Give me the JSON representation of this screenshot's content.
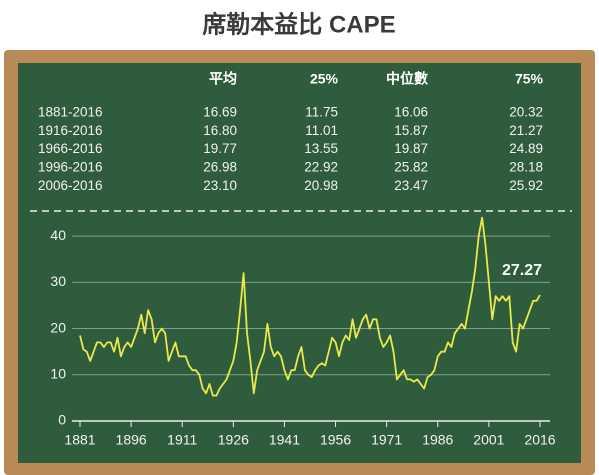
{
  "title": "席勒本益比 CAPE",
  "table": {
    "columns": [
      "平均",
      "25%",
      "中位數",
      "75%"
    ],
    "rows": [
      [
        "1881-2016",
        "16.69",
        "11.75",
        "16.06",
        "20.32"
      ],
      [
        "1916-2016",
        "16.80",
        "11.01",
        "15.87",
        "21.27"
      ],
      [
        "1966-2016",
        "19.77",
        "13.55",
        "19.87",
        "24.89"
      ],
      [
        "1996-2016",
        "26.98",
        "22.92",
        "25.82",
        "28.18"
      ],
      [
        "2006-2016",
        "23.10",
        "20.98",
        "23.47",
        "25.92"
      ]
    ]
  },
  "chart_data": {
    "type": "line",
    "color": "#e8ea4c",
    "grid": true,
    "x": [
      1881,
      1882,
      1883,
      1884,
      1885,
      1886,
      1887,
      1888,
      1889,
      1890,
      1891,
      1892,
      1893,
      1894,
      1895,
      1896,
      1897,
      1898,
      1899,
      1900,
      1901,
      1902,
      1903,
      1904,
      1905,
      1906,
      1907,
      1908,
      1909,
      1910,
      1911,
      1912,
      1913,
      1914,
      1915,
      1916,
      1917,
      1918,
      1919,
      1920,
      1921,
      1922,
      1923,
      1924,
      1925,
      1926,
      1927,
      1928,
      1929,
      1930,
      1931,
      1932,
      1933,
      1934,
      1935,
      1936,
      1937,
      1938,
      1939,
      1940,
      1941,
      1942,
      1943,
      1944,
      1945,
      1946,
      1947,
      1948,
      1949,
      1950,
      1951,
      1952,
      1953,
      1954,
      1955,
      1956,
      1957,
      1958,
      1959,
      1960,
      1961,
      1962,
      1963,
      1964,
      1965,
      1966,
      1967,
      1968,
      1969,
      1970,
      1971,
      1972,
      1973,
      1974,
      1975,
      1976,
      1977,
      1978,
      1979,
      1980,
      1981,
      1982,
      1983,
      1984,
      1985,
      1986,
      1987,
      1988,
      1989,
      1990,
      1991,
      1992,
      1993,
      1994,
      1995,
      1996,
      1997,
      1998,
      1999,
      2000,
      2001,
      2002,
      2003,
      2004,
      2005,
      2006,
      2007,
      2008,
      2009,
      2010,
      2011,
      2012,
      2013,
      2014,
      2015,
      2016
    ],
    "values": [
      18.5,
      15.5,
      15,
      13,
      15,
      17,
      17,
      16,
      17,
      17,
      15,
      18,
      14,
      16,
      17,
      16,
      18,
      20,
      23,
      19,
      24,
      22,
      17,
      19,
      20,
      19,
      13,
      15,
      17,
      14,
      14,
      14,
      12,
      11,
      11,
      10,
      7,
      6,
      8,
      5.5,
      5.5,
      7,
      8,
      9,
      11,
      13,
      17,
      24,
      32,
      19,
      13,
      6,
      11,
      13,
      15,
      21,
      16,
      14,
      15,
      14,
      11,
      9,
      11,
      11,
      14,
      16,
      11,
      10,
      9.5,
      11,
      12,
      12.5,
      12,
      15,
      18,
      17,
      14,
      17,
      18.5,
      17.5,
      22,
      18,
      20,
      22,
      23,
      20,
      22,
      22,
      18,
      16,
      17,
      18.5,
      15,
      9,
      10,
      11,
      9,
      9,
      8.5,
      9,
      8,
      7,
      9.5,
      10,
      11,
      14,
      15,
      15,
      17,
      16,
      19,
      20,
      21,
      20,
      24,
      28,
      33,
      40,
      44,
      38,
      30,
      22,
      27,
      26,
      27,
      26,
      27,
      17,
      15,
      21,
      20,
      22,
      24,
      26,
      26,
      27.27
    ],
    "xlim": [
      1881,
      2016
    ],
    "ylim": [
      0,
      45
    ],
    "xticks": [
      1881,
      1896,
      1911,
      1926,
      1941,
      1956,
      1971,
      1986,
      2001,
      2016
    ],
    "yticks": [
      0,
      10,
      20,
      30,
      40
    ]
  }
}
